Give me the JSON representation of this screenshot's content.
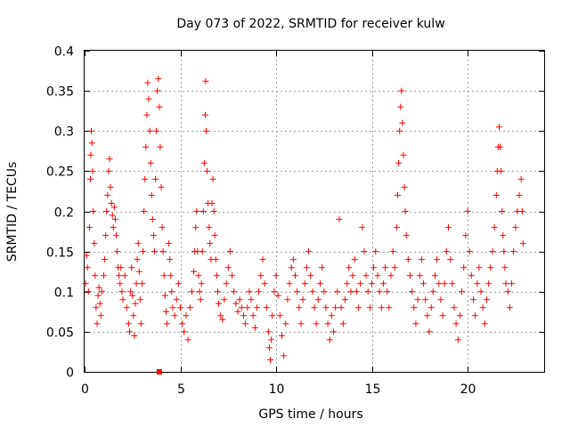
{
  "chart_data": {
    "type": "scatter",
    "title": "Day 073 of 2022, SRMTID for receiver kulw",
    "xlabel": "GPS time / hours",
    "ylabel": "SRMTID / TECUs",
    "xlim": [
      0,
      24
    ],
    "ylim": [
      0,
      0.4
    ],
    "xticks": [
      0,
      5,
      10,
      15,
      20
    ],
    "xtick_labels": [
      "0",
      "5",
      "10",
      "15",
      "20"
    ],
    "yticks": [
      0,
      0.05,
      0.1,
      0.15,
      0.2,
      0.25,
      0.3,
      0.35,
      0.4
    ],
    "ytick_labels": [
      "0",
      "0.05",
      "0.1",
      "0.15",
      "0.2",
      "0.25",
      "0.3",
      "0.35",
      "0.4"
    ],
    "grid": true,
    "marker": "plus",
    "color": "#ff0000",
    "series": [
      {
        "name": "SRMTID",
        "points": [
          [
            0.05,
            0.11
          ],
          [
            0.1,
            0.145
          ],
          [
            0.15,
            0.13
          ],
          [
            0.2,
            0.1
          ],
          [
            0.25,
            0.18
          ],
          [
            0.3,
            0.24
          ],
          [
            0.32,
            0.27
          ],
          [
            0.35,
            0.3
          ],
          [
            0.38,
            0.285
          ],
          [
            0.42,
            0.25
          ],
          [
            0.45,
            0.2
          ],
          [
            0.5,
            0.16
          ],
          [
            0.55,
            0.12
          ],
          [
            0.6,
            0.08
          ],
          [
            0.65,
            0.06
          ],
          [
            0.7,
            0.095
          ],
          [
            0.75,
            0.105
          ],
          [
            0.8,
            0.085
          ],
          [
            0.85,
            0.07
          ],
          [
            0.9,
            0.1
          ],
          [
            1.0,
            0.12
          ],
          [
            1.05,
            0.14
          ],
          [
            1.1,
            0.17
          ],
          [
            1.15,
            0.2
          ],
          [
            1.2,
            0.22
          ],
          [
            1.25,
            0.25
          ],
          [
            1.3,
            0.265
          ],
          [
            1.35,
            0.23
          ],
          [
            1.4,
            0.21
          ],
          [
            1.45,
            0.195
          ],
          [
            1.5,
            0.18
          ],
          [
            1.55,
            0.205
          ],
          [
            1.6,
            0.19
          ],
          [
            1.65,
            0.17
          ],
          [
            1.7,
            0.15
          ],
          [
            1.75,
            0.13
          ],
          [
            1.8,
            0.12
          ],
          [
            1.85,
            0.11
          ],
          [
            1.9,
            0.13
          ],
          [
            1.95,
            0.1
          ],
          [
            2.0,
            0.09
          ],
          [
            2.1,
            0.12
          ],
          [
            2.2,
            0.08
          ],
          [
            2.3,
            0.06
          ],
          [
            2.35,
            0.05
          ],
          [
            2.4,
            0.1
          ],
          [
            2.45,
            0.13
          ],
          [
            2.5,
            0.095
          ],
          [
            2.55,
            0.07
          ],
          [
            2.6,
            0.045
          ],
          [
            2.65,
            0.085
          ],
          [
            2.7,
            0.11
          ],
          [
            2.75,
            0.14
          ],
          [
            2.8,
            0.16
          ],
          [
            2.85,
            0.125
          ],
          [
            2.9,
            0.09
          ],
          [
            2.95,
            0.06
          ],
          [
            3.0,
            0.11
          ],
          [
            3.05,
            0.15
          ],
          [
            3.1,
            0.2
          ],
          [
            3.15,
            0.24
          ],
          [
            3.2,
            0.28
          ],
          [
            3.25,
            0.32
          ],
          [
            3.3,
            0.36
          ],
          [
            3.35,
            0.34
          ],
          [
            3.4,
            0.3
          ],
          [
            3.45,
            0.26
          ],
          [
            3.5,
            0.22
          ],
          [
            3.55,
            0.19
          ],
          [
            3.6,
            0.17
          ],
          [
            3.65,
            0.15
          ],
          [
            3.7,
            0.24
          ],
          [
            3.75,
            0.3
          ],
          [
            3.8,
            0.35
          ],
          [
            3.85,
            0.365
          ],
          [
            3.9,
            0.33
          ],
          [
            3.95,
            0.28
          ],
          [
            4.0,
            0.23
          ],
          [
            4.05,
            0.18
          ],
          [
            4.1,
            0.15
          ],
          [
            4.15,
            0.12
          ],
          [
            4.2,
            0.095
          ],
          [
            4.25,
            0.075
          ],
          [
            4.3,
            0.06
          ],
          [
            4.4,
            0.16
          ],
          [
            4.45,
            0.14
          ],
          [
            4.5,
            0.12
          ],
          [
            4.55,
            0.1
          ],
          [
            4.6,
            0.08
          ],
          [
            4.7,
            0.07
          ],
          [
            4.8,
            0.09
          ],
          [
            4.9,
            0.11
          ],
          [
            5.0,
            0.08
          ],
          [
            5.1,
            0.06
          ],
          [
            5.2,
            0.05
          ],
          [
            5.3,
            0.07
          ],
          [
            5.4,
            0.04
          ],
          [
            5.5,
            0.08
          ],
          [
            5.6,
            0.1
          ],
          [
            5.7,
            0.125
          ],
          [
            5.75,
            0.15
          ],
          [
            5.8,
            0.18
          ],
          [
            5.85,
            0.2
          ],
          [
            5.9,
            0.15
          ],
          [
            5.95,
            0.12
          ],
          [
            6.0,
            0.1
          ],
          [
            6.05,
            0.09
          ],
          [
            6.1,
            0.11
          ],
          [
            6.15,
            0.15
          ],
          [
            6.2,
            0.2
          ],
          [
            6.25,
            0.26
          ],
          [
            6.3,
            0.32
          ],
          [
            6.32,
            0.362
          ],
          [
            6.35,
            0.3
          ],
          [
            6.4,
            0.25
          ],
          [
            6.45,
            0.21
          ],
          [
            6.5,
            0.18
          ],
          [
            6.55,
            0.16
          ],
          [
            6.6,
            0.14
          ],
          [
            6.65,
            0.21
          ],
          [
            6.7,
            0.24
          ],
          [
            6.75,
            0.2
          ],
          [
            6.8,
            0.17
          ],
          [
            6.85,
            0.14
          ],
          [
            6.9,
            0.12
          ],
          [
            6.95,
            0.1
          ],
          [
            7.0,
            0.085
          ],
          [
            7.1,
            0.07
          ],
          [
            7.2,
            0.065
          ],
          [
            7.3,
            0.09
          ],
          [
            7.4,
            0.11
          ],
          [
            7.5,
            0.13
          ],
          [
            7.6,
            0.15
          ],
          [
            7.7,
            0.12
          ],
          [
            7.8,
            0.1
          ],
          [
            7.9,
            0.085
          ],
          [
            8.0,
            0.075
          ],
          [
            8.1,
            0.09
          ],
          [
            8.2,
            0.08
          ],
          [
            8.3,
            0.07
          ],
          [
            8.4,
            0.06
          ],
          [
            8.5,
            0.08
          ],
          [
            8.6,
            0.1
          ],
          [
            8.7,
            0.09
          ],
          [
            8.8,
            0.07
          ],
          [
            8.9,
            0.055
          ],
          [
            9.0,
            0.08
          ],
          [
            9.1,
            0.1
          ],
          [
            9.2,
            0.12
          ],
          [
            9.3,
            0.14
          ],
          [
            9.4,
            0.11
          ],
          [
            9.5,
            0.08
          ],
          [
            9.6,
            0.05
          ],
          [
            9.65,
            0.03
          ],
          [
            9.7,
            0.015
          ],
          [
            9.75,
            0.04
          ],
          [
            9.8,
            0.07
          ],
          [
            9.9,
            0.1
          ],
          [
            10.0,
            0.12
          ],
          [
            10.1,
            0.095
          ],
          [
            10.2,
            0.07
          ],
          [
            10.3,
            0.045
          ],
          [
            10.4,
            0.02
          ],
          [
            10.5,
            0.06
          ],
          [
            10.6,
            0.09
          ],
          [
            10.7,
            0.11
          ],
          [
            10.8,
            0.13
          ],
          [
            10.9,
            0.14
          ],
          [
            11.0,
            0.12
          ],
          [
            11.1,
            0.1
          ],
          [
            11.2,
            0.08
          ],
          [
            11.3,
            0.06
          ],
          [
            11.4,
            0.09
          ],
          [
            11.5,
            0.11
          ],
          [
            11.6,
            0.13
          ],
          [
            11.7,
            0.15
          ],
          [
            11.8,
            0.12
          ],
          [
            11.9,
            0.1
          ],
          [
            12.0,
            0.08
          ],
          [
            12.1,
            0.06
          ],
          [
            12.2,
            0.09
          ],
          [
            12.3,
            0.11
          ],
          [
            12.4,
            0.13
          ],
          [
            12.5,
            0.1
          ],
          [
            12.6,
            0.08
          ],
          [
            12.7,
            0.06
          ],
          [
            12.8,
            0.04
          ],
          [
            12.9,
            0.07
          ],
          [
            13.0,
            0.05
          ],
          [
            13.1,
            0.08
          ],
          [
            13.2,
            0.1
          ],
          [
            13.3,
            0.19
          ],
          [
            13.4,
            0.08
          ],
          [
            13.5,
            0.06
          ],
          [
            13.6,
            0.09
          ],
          [
            13.7,
            0.11
          ],
          [
            13.8,
            0.13
          ],
          [
            13.9,
            0.1
          ],
          [
            14.0,
            0.12
          ],
          [
            14.1,
            0.14
          ],
          [
            14.2,
            0.1
          ],
          [
            14.3,
            0.08
          ],
          [
            14.4,
            0.11
          ],
          [
            14.5,
            0.18
          ],
          [
            14.6,
            0.15
          ],
          [
            14.7,
            0.12
          ],
          [
            14.8,
            0.1
          ],
          [
            14.9,
            0.08
          ],
          [
            15.0,
            0.11
          ],
          [
            15.1,
            0.13
          ],
          [
            15.2,
            0.15
          ],
          [
            15.3,
            0.12
          ],
          [
            15.4,
            0.1
          ],
          [
            15.5,
            0.08
          ],
          [
            15.6,
            0.11
          ],
          [
            15.7,
            0.13
          ],
          [
            15.8,
            0.1
          ],
          [
            15.9,
            0.08
          ],
          [
            16.0,
            0.12
          ],
          [
            16.1,
            0.15
          ],
          [
            16.2,
            0.13
          ],
          [
            16.3,
            0.18
          ],
          [
            16.35,
            0.22
          ],
          [
            16.4,
            0.26
          ],
          [
            16.45,
            0.3
          ],
          [
            16.5,
            0.33
          ],
          [
            16.55,
            0.35
          ],
          [
            16.6,
            0.31
          ],
          [
            16.65,
            0.27
          ],
          [
            16.7,
            0.23
          ],
          [
            16.75,
            0.2
          ],
          [
            16.8,
            0.17
          ],
          [
            16.9,
            0.14
          ],
          [
            17.0,
            0.12
          ],
          [
            17.1,
            0.1
          ],
          [
            17.2,
            0.08
          ],
          [
            17.3,
            0.06
          ],
          [
            17.4,
            0.09
          ],
          [
            17.5,
            0.12
          ],
          [
            17.6,
            0.14
          ],
          [
            17.7,
            0.11
          ],
          [
            17.8,
            0.09
          ],
          [
            17.9,
            0.07
          ],
          [
            18.0,
            0.05
          ],
          [
            18.1,
            0.08
          ],
          [
            18.2,
            0.1
          ],
          [
            18.3,
            0.12
          ],
          [
            18.4,
            0.14
          ],
          [
            18.5,
            0.11
          ],
          [
            18.6,
            0.09
          ],
          [
            18.7,
            0.07
          ],
          [
            18.8,
            0.11
          ],
          [
            18.9,
            0.15
          ],
          [
            19.0,
            0.18
          ],
          [
            19.1,
            0.14
          ],
          [
            19.2,
            0.11
          ],
          [
            19.3,
            0.08
          ],
          [
            19.4,
            0.06
          ],
          [
            19.5,
            0.04
          ],
          [
            19.6,
            0.07
          ],
          [
            19.7,
            0.1
          ],
          [
            19.8,
            0.13
          ],
          [
            19.9,
            0.17
          ],
          [
            20.0,
            0.2
          ],
          [
            20.1,
            0.15
          ],
          [
            20.2,
            0.12
          ],
          [
            20.3,
            0.09
          ],
          [
            20.4,
            0.07
          ],
          [
            20.5,
            0.11
          ],
          [
            20.6,
            0.13
          ],
          [
            20.7,
            0.1
          ],
          [
            20.8,
            0.08
          ],
          [
            20.9,
            0.06
          ],
          [
            21.0,
            0.09
          ],
          [
            21.1,
            0.11
          ],
          [
            21.2,
            0.13
          ],
          [
            21.3,
            0.15
          ],
          [
            21.4,
            0.18
          ],
          [
            21.5,
            0.22
          ],
          [
            21.55,
            0.25
          ],
          [
            21.6,
            0.28
          ],
          [
            21.65,
            0.305
          ],
          [
            21.7,
            0.28
          ],
          [
            21.75,
            0.25
          ],
          [
            21.8,
            0.2
          ],
          [
            21.85,
            0.17
          ],
          [
            21.9,
            0.15
          ],
          [
            21.95,
            0.13
          ],
          [
            22.0,
            0.11
          ],
          [
            22.1,
            0.1
          ],
          [
            22.2,
            0.08
          ],
          [
            22.3,
            0.11
          ],
          [
            22.4,
            0.15
          ],
          [
            22.5,
            0.18
          ],
          [
            22.6,
            0.2
          ],
          [
            22.7,
            0.22
          ],
          [
            22.8,
            0.24
          ],
          [
            22.85,
            0.2
          ],
          [
            22.9,
            0.16
          ]
        ]
      }
    ],
    "annotations": [
      {
        "type": "square-marker",
        "x": 3.9,
        "y": 0.0
      }
    ]
  }
}
